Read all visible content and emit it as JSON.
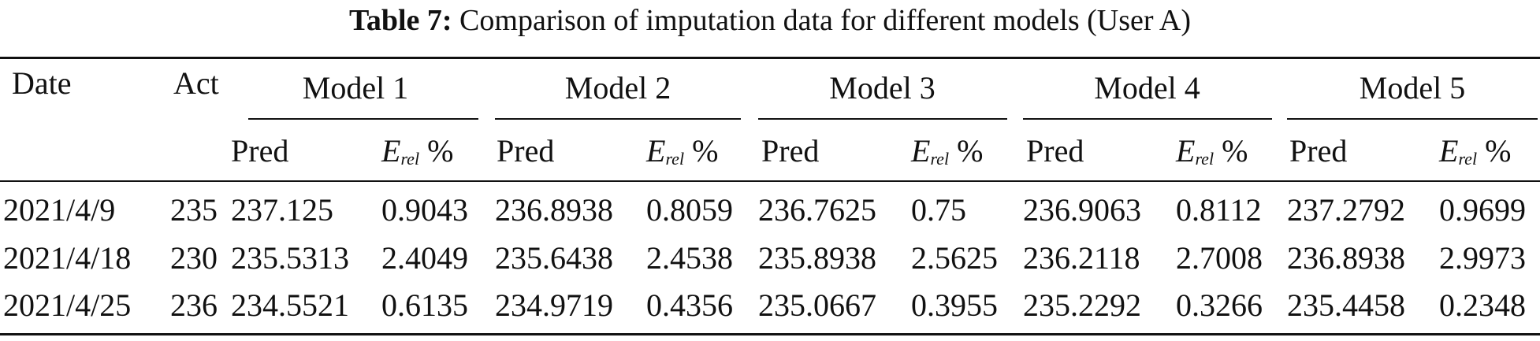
{
  "caption": {
    "label": "Table 7:",
    "text": "Comparison of imputation data for different models (User A)"
  },
  "header": {
    "date": "Date",
    "act": "Act",
    "models": [
      "Model 1",
      "Model 2",
      "Model 3",
      "Model 4",
      "Model 5"
    ],
    "pred": "Pred",
    "erel_main": "E",
    "erel_sub": "rel",
    "erel_unit": " %"
  },
  "rows": [
    {
      "date": "2021/4/9",
      "act": "235",
      "vals": [
        "237.125",
        "0.9043",
        "236.8938",
        "0.8059",
        "236.7625",
        "0.75",
        "236.9063",
        "0.8112",
        "237.2792",
        "0.9699"
      ]
    },
    {
      "date": "2021/4/18",
      "act": "230",
      "vals": [
        "235.5313",
        "2.4049",
        "235.6438",
        "2.4538",
        "235.8938",
        "2.5625",
        "236.2118",
        "2.7008",
        "236.8938",
        "2.9973"
      ]
    },
    {
      "date": "2021/4/25",
      "act": "236",
      "vals": [
        "234.5521",
        "0.6135",
        "234.9719",
        "0.4356",
        "235.0667",
        "0.3955",
        "235.2292",
        "0.3266",
        "235.4458",
        "0.2348"
      ]
    }
  ]
}
